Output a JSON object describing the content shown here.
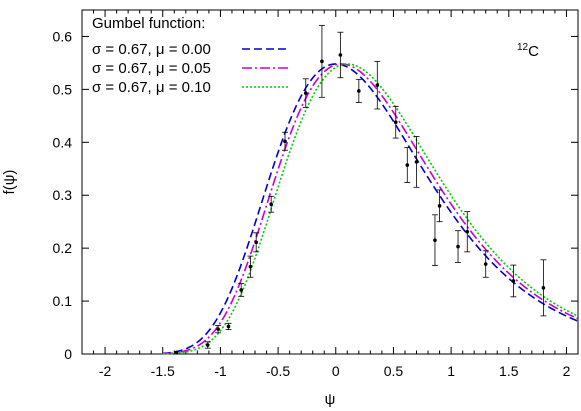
{
  "chart_data": {
    "type": "line",
    "title": "",
    "annotation": {
      "mass_number": "12",
      "element": "C"
    },
    "xlabel": "ψ",
    "ylabel": "f(ψ)",
    "xlim": [
      -2.2,
      2.1
    ],
    "ylim": [
      0,
      0.65
    ],
    "x_ticks": [
      -2,
      -1.5,
      -1,
      -0.5,
      0,
      0.5,
      1,
      1.5,
      2
    ],
    "x_tick_labels": [
      "-2",
      "-1.5",
      "-1",
      "-0.5",
      "0",
      "0.5",
      "1",
      "1.5",
      "2"
    ],
    "y_ticks": [
      0,
      0.1,
      0.2,
      0.3,
      0.4,
      0.5,
      0.6
    ],
    "y_tick_labels": [
      "0",
      "0.1",
      "0.2",
      "0.3",
      "0.4",
      "0.5",
      "0.6"
    ],
    "grid": false,
    "legend": {
      "title": "Gumbel function:",
      "placement": "top-left"
    },
    "series": [
      {
        "name": "σ = 0.67, μ = 0.00",
        "sigma": 0.67,
        "mu": 0.0,
        "amplitude": 0.548,
        "color": "#0000cc",
        "dash": "8,4"
      },
      {
        "name": "σ = 0.67, μ = 0.05",
        "sigma": 0.67,
        "mu": 0.05,
        "amplitude": 0.548,
        "color": "#cc00cc",
        "dash": "10,3,2,3"
      },
      {
        "name": "σ = 0.67, μ = 0.10",
        "sigma": 0.67,
        "mu": 0.1,
        "amplitude": 0.548,
        "color": "#00cc00",
        "dash": "2,2"
      }
    ],
    "data_points": [
      {
        "x": -1.38,
        "y": 0.003,
        "err": 0.0
      },
      {
        "x": -1.11,
        "y": 0.017,
        "err": 0.006
      },
      {
        "x": -1.02,
        "y": 0.047,
        "err": 0.007
      },
      {
        "x": -0.93,
        "y": 0.052,
        "err": 0.006
      },
      {
        "x": -0.82,
        "y": 0.121,
        "err": 0.012
      },
      {
        "x": -0.74,
        "y": 0.165,
        "err": 0.02
      },
      {
        "x": -0.69,
        "y": 0.211,
        "err": 0.018
      },
      {
        "x": -0.56,
        "y": 0.283,
        "err": 0.015
      },
      {
        "x": -0.44,
        "y": 0.402,
        "err": 0.017
      },
      {
        "x": -0.26,
        "y": 0.493,
        "err": 0.027
      },
      {
        "x": -0.12,
        "y": 0.553,
        "err": 0.068
      },
      {
        "x": 0.04,
        "y": 0.565,
        "err": 0.043
      },
      {
        "x": 0.2,
        "y": 0.497,
        "err": 0.022
      },
      {
        "x": 0.36,
        "y": 0.508,
        "err": 0.045
      },
      {
        "x": 0.52,
        "y": 0.438,
        "err": 0.03
      },
      {
        "x": 0.62,
        "y": 0.357,
        "err": 0.033
      },
      {
        "x": 0.7,
        "y": 0.363,
        "err": 0.048
      },
      {
        "x": 0.86,
        "y": 0.215,
        "err": 0.048
      },
      {
        "x": 0.9,
        "y": 0.28,
        "err": 0.03
      },
      {
        "x": 1.06,
        "y": 0.203,
        "err": 0.03
      },
      {
        "x": 1.14,
        "y": 0.231,
        "err": 0.038
      },
      {
        "x": 1.3,
        "y": 0.17,
        "err": 0.025
      },
      {
        "x": 1.54,
        "y": 0.138,
        "err": 0.03
      },
      {
        "x": 1.8,
        "y": 0.125,
        "err": 0.053
      }
    ]
  }
}
